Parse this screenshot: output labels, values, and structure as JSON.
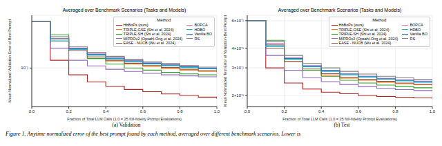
{
  "caption": "Figure 1. Anytime normalized error of the best prompt found by each method, averaged over different benchmark scenarios. Lower is",
  "chart_data": [
    {
      "type": "line",
      "title": "Averaged over Benchmark Scenarios (Tasks and Models)",
      "subtitle": "(a) Validation",
      "x_label": "Fraction of Total LLM Calls (1.0 = 25 full-fidelity Prompt Evaluations)",
      "y_label": "Mean Normalized Validation Error of Best Prompt",
      "legend_title": "Method",
      "legend": "upper right",
      "log": "y",
      "grid": true,
      "line_style": "steps",
      "x": [
        0,
        0.1,
        0.2,
        0.3,
        0.4,
        0.5,
        0.6,
        0.7,
        0.8,
        0.9,
        1.0
      ],
      "xlim": [
        0,
        1
      ],
      "xticks": [
        {
          "value": 0,
          "label": "0.0"
        },
        0.2,
        0.4,
        0.6,
        0.8,
        {
          "value": 1,
          "label": "1.0"
        }
      ],
      "ylim": [
        0.04,
        0.35
      ],
      "yticks": [
        {
          "value": 0.1,
          "label": "10⁻¹"
        }
      ],
      "series": [
        {
          "name": "HbBoPs (ours)",
          "color": "#b22222",
          "values": [
            0.3,
            0.12,
            0.085,
            0.072,
            0.065,
            0.06,
            0.057,
            0.054,
            0.052,
            0.05,
            0.048
          ]
        },
        {
          "name": "TRIPLE-GSE (Shi et al. 2024)",
          "color": "#ff7f0e",
          "values": [
            0.3,
            0.2,
            0.15,
            0.13,
            0.118,
            0.11,
            0.104,
            0.099,
            0.095,
            0.092,
            0.09
          ]
        },
        {
          "name": "TRIPLE-SH (Shi et al. 2024)",
          "color": "#2ca02c",
          "values": [
            0.3,
            0.22,
            0.16,
            0.125,
            0.11,
            0.1,
            0.095,
            0.09,
            0.087,
            0.085,
            0.083
          ]
        },
        {
          "name": "MIPROv2 (Opsahl-Ong et al. 2024)",
          "color": "#9467bd",
          "values": [
            0.3,
            0.16,
            0.12,
            0.105,
            0.097,
            0.092,
            0.088,
            0.085,
            0.083,
            0.081,
            0.08
          ]
        },
        {
          "name": "EASE - NUCB (Wu et al. 2024)",
          "color": "#8c564b",
          "values": [
            0.3,
            0.19,
            0.15,
            0.13,
            0.12,
            0.112,
            0.106,
            0.101,
            0.097,
            0.094,
            0.091
          ]
        },
        {
          "name": "BOPCA",
          "color": "#e377c2",
          "values": [
            0.3,
            0.2,
            0.16,
            0.14,
            0.128,
            0.12,
            0.114,
            0.108,
            0.104,
            0.1,
            0.097
          ]
        },
        {
          "name": "HDBO",
          "color": "#17becf",
          "values": [
            0.3,
            0.19,
            0.155,
            0.135,
            0.124,
            0.116,
            0.11,
            0.105,
            0.101,
            0.098,
            0.095
          ]
        },
        {
          "name": "Vanilla BO",
          "color": "#1f77b4",
          "values": [
            0.3,
            0.2,
            0.158,
            0.138,
            0.126,
            0.118,
            0.112,
            0.107,
            0.103,
            0.099,
            0.096
          ]
        },
        {
          "name": "RS",
          "color": "#7f7f7f",
          "values": [
            0.3,
            0.21,
            0.165,
            0.145,
            0.132,
            0.123,
            0.116,
            0.111,
            0.106,
            0.102,
            0.099
          ]
        }
      ]
    },
    {
      "type": "line",
      "title": "Averaged over Benchmark Scenarios (Tasks and Models)",
      "subtitle": "(b) Test",
      "x_label": "Fraction of Total LLM Calls (1.0 = 25 full-fidelity Prompt Evaluations)",
      "y_label": "Mean Normalized Test Error of Validation-Best Prompt",
      "legend_title": "Method",
      "legend": "upper right",
      "log": "y",
      "grid": true,
      "line_style": "steps",
      "x": [
        0,
        0.1,
        0.2,
        0.3,
        0.4,
        0.5,
        0.6,
        0.7,
        0.8,
        0.9,
        1.0
      ],
      "xlim": [
        0,
        1
      ],
      "xticks": [
        {
          "value": 0,
          "label": "0.0"
        },
        0.2,
        0.4,
        0.6,
        0.8,
        {
          "value": 1,
          "label": "1.0"
        }
      ],
      "ylim": [
        0.17,
        0.65
      ],
      "yticks": [
        {
          "value": 0.2,
          "label": "2×10⁻¹"
        },
        {
          "value": 0.3,
          "label": "3×10⁻¹"
        },
        {
          "value": 0.4,
          "label": "4×10⁻¹"
        },
        {
          "value": 0.6,
          "label": "6×10⁻¹"
        }
      ],
      "series": [
        {
          "name": "HbBoPs (ours)",
          "color": "#b22222",
          "values": [
            0.6,
            0.3,
            0.24,
            0.22,
            0.21,
            0.205,
            0.2,
            0.197,
            0.195,
            0.193,
            0.19
          ]
        },
        {
          "name": "TRIPLE-GSE (Shi et al. 2024)",
          "color": "#ff7f0e",
          "values": [
            0.6,
            0.42,
            0.33,
            0.29,
            0.27,
            0.258,
            0.25,
            0.243,
            0.238,
            0.234,
            0.23
          ]
        },
        {
          "name": "TRIPLE-SH (Shi et al. 2024)",
          "color": "#2ca02c",
          "values": [
            0.6,
            0.45,
            0.34,
            0.29,
            0.265,
            0.25,
            0.24,
            0.233,
            0.228,
            0.224,
            0.22
          ]
        },
        {
          "name": "MIPROv2 (Opsahl-Ong et al. 2024)",
          "color": "#9467bd",
          "values": [
            0.6,
            0.36,
            0.29,
            0.26,
            0.245,
            0.235,
            0.228,
            0.222,
            0.218,
            0.215,
            0.212
          ]
        },
        {
          "name": "EASE - NUCB (Wu et al. 2024)",
          "color": "#8c564b",
          "values": [
            0.6,
            0.4,
            0.33,
            0.295,
            0.275,
            0.262,
            0.253,
            0.246,
            0.24,
            0.236,
            0.232
          ]
        },
        {
          "name": "BOPCA",
          "color": "#e377c2",
          "values": [
            0.6,
            0.43,
            0.35,
            0.31,
            0.29,
            0.276,
            0.266,
            0.258,
            0.252,
            0.247,
            0.243
          ]
        },
        {
          "name": "HDBO",
          "color": "#17becf",
          "values": [
            0.6,
            0.41,
            0.34,
            0.305,
            0.285,
            0.271,
            0.261,
            0.254,
            0.248,
            0.243,
            0.239
          ]
        },
        {
          "name": "Vanilla BO",
          "color": "#1f77b4",
          "values": [
            0.6,
            0.42,
            0.345,
            0.308,
            0.288,
            0.274,
            0.264,
            0.256,
            0.25,
            0.245,
            0.241
          ]
        },
        {
          "name": "RS",
          "color": "#7f7f7f",
          "values": [
            0.6,
            0.44,
            0.36,
            0.32,
            0.3,
            0.285,
            0.274,
            0.265,
            0.259,
            0.253,
            0.249
          ]
        }
      ]
    }
  ]
}
